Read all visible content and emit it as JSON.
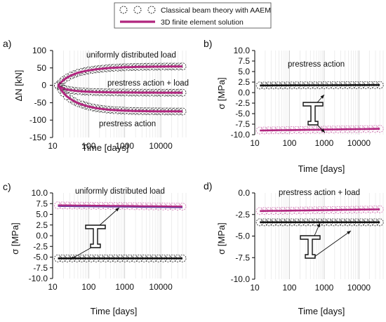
{
  "legend": {
    "items": [
      {
        "label": "Classical beam theory with AAEM",
        "marker": "dashed-circle"
      },
      {
        "label": "3D finite element solution",
        "marker": "line",
        "color": "#b0257e"
      }
    ]
  },
  "colors": {
    "fem": "#b0257e",
    "fem_light": "#d17ab4",
    "aaem": "#111111",
    "axis": "#000000",
    "grid": "#cccccc",
    "purple_line": "#6b3fa0"
  },
  "chart_data": [
    {
      "id": "a",
      "panel_label": "a)",
      "type": "line",
      "xscale": "log",
      "xlim": [
        10,
        50000
      ],
      "xticks": [
        10,
        100,
        1000,
        10000
      ],
      "xtick_labels": [
        "10",
        "100",
        "1000",
        "10000"
      ],
      "ylim": [
        -150,
        100
      ],
      "yticks": [
        100,
        50,
        0,
        -50,
        -100,
        -150
      ],
      "ytick_labels": [
        "100",
        "50",
        "0",
        "-50",
        "-100",
        "-150"
      ],
      "xlabel": "Time [days]",
      "ylabel": "ΔN [kN]",
      "annotations": [
        "uniformly distributed load",
        "prestress action + load",
        "prestress action"
      ],
      "series": [
        {
          "x": [
            14,
            17,
            20,
            25,
            32,
            40,
            50,
            65,
            80,
            100,
            130,
            160,
            200,
            250,
            320,
            400,
            500,
            650,
            800,
            1000,
            1300,
            1600,
            2000,
            2500,
            3200,
            4000,
            5000,
            6500,
            8000,
            10000,
            13000,
            16000,
            20000,
            25000,
            32000,
            40000
          ],
          "y": [
            0,
            8,
            15,
            22,
            28,
            32,
            36,
            39,
            41,
            43,
            44.5,
            46,
            47,
            48,
            49,
            50,
            50.5,
            51,
            51.5,
            52,
            52.3,
            52.5,
            52.8,
            53,
            53.2,
            53.4,
            53.5,
            53.6,
            53.7,
            53.8,
            53.9,
            54,
            54,
            54.1,
            54.1,
            54.2
          ]
        },
        {
          "x": [
            14,
            17,
            20,
            25,
            32,
            40,
            50,
            65,
            80,
            100,
            130,
            160,
            200,
            250,
            320,
            400,
            500,
            650,
            800,
            1000,
            1300,
            1600,
            2000,
            2500,
            3200,
            4000,
            5000,
            6500,
            8000,
            10000,
            13000,
            16000,
            20000,
            25000,
            32000,
            40000
          ],
          "y": [
            0,
            -5,
            -9,
            -12,
            -14,
            -15.5,
            -16.5,
            -17.3,
            -18,
            -18.5,
            -19,
            -19.3,
            -19.6,
            -19.8,
            -20,
            -20.2,
            -20.3,
            -20.4,
            -20.5,
            -20.6,
            -20.7,
            -20.8,
            -20.8,
            -20.9,
            -20.9,
            -21,
            -21,
            -21,
            -21.1,
            -21.1,
            -21.1,
            -21.2,
            -21.2,
            -21.2,
            -21.2,
            -21.3
          ]
        },
        {
          "x": [
            14,
            17,
            20,
            25,
            32,
            40,
            50,
            65,
            80,
            100,
            130,
            160,
            200,
            250,
            320,
            400,
            500,
            650,
            800,
            1000,
            1300,
            1600,
            2000,
            2500,
            3200,
            4000,
            5000,
            6500,
            8000,
            10000,
            13000,
            16000,
            20000,
            25000,
            32000,
            40000
          ],
          "y": [
            0,
            -12,
            -22,
            -32,
            -40,
            -46,
            -51,
            -55,
            -58,
            -61,
            -63.5,
            -65.5,
            -67,
            -68.3,
            -69.5,
            -70.5,
            -71.2,
            -71.8,
            -72.3,
            -72.8,
            -73.2,
            -73.5,
            -73.8,
            -74,
            -74.2,
            -74.4,
            -74.5,
            -74.6,
            -74.7,
            -74.8,
            -74.9,
            -75,
            -75,
            -75.1,
            -75.1,
            -75.2
          ]
        }
      ]
    },
    {
      "id": "b",
      "panel_label": "b)",
      "type": "line",
      "xscale": "log",
      "xlim": [
        10,
        50000
      ],
      "xticks": [
        10,
        100,
        1000,
        10000
      ],
      "xtick_labels": [
        "10",
        "100",
        "1000",
        "10000"
      ],
      "ylim": [
        -10,
        10
      ],
      "yticks": [
        10,
        7.5,
        5,
        2.5,
        0,
        -2.5,
        -5,
        -7.5,
        -10
      ],
      "ytick_labels": [
        "10.0",
        "7.5",
        "5.0",
        "2.5",
        "0.0",
        "-2.5",
        "-5.0",
        "-7.5",
        "-10.0"
      ],
      "xlabel": "Time [days]",
      "ylabel": "σ [MPa]",
      "annotations": [
        "prestress action"
      ],
      "series": [
        {
          "x": [
            14,
            40000
          ],
          "y": [
            1.7,
            1.8
          ],
          "role": "top"
        },
        {
          "x": [
            14,
            40000
          ],
          "y": [
            -9.0,
            -8.6
          ],
          "role": "bottom"
        }
      ]
    },
    {
      "id": "c",
      "panel_label": "c)",
      "type": "line",
      "xscale": "log",
      "xlim": [
        10,
        50000
      ],
      "xticks": [
        10,
        100,
        1000,
        10000
      ],
      "xtick_labels": [
        "10",
        "100",
        "1000",
        "10000"
      ],
      "ylim": [
        -10,
        10
      ],
      "yticks": [
        10,
        7.5,
        5,
        2.5,
        0,
        -2.5,
        -5,
        -7.5,
        -10
      ],
      "ytick_labels": [
        "10.0",
        "7.5",
        "5.0",
        "2.5",
        "0.0",
        "-2.5",
        "-5.0",
        "-7.5",
        "-10.0"
      ],
      "xlabel": "Time [days]",
      "ylabel": "σ [MPa]",
      "annotations": [
        "uniformly distributed load"
      ],
      "series": [
        {
          "x": [
            14,
            40000
          ],
          "y": [
            7.1,
            6.8
          ],
          "role": "top"
        },
        {
          "x": [
            14,
            40000
          ],
          "y": [
            -5.3,
            -5.3
          ],
          "role": "bottom"
        }
      ]
    },
    {
      "id": "d",
      "panel_label": "d)",
      "type": "line",
      "xscale": "log",
      "xlim": [
        10,
        50000
      ],
      "xticks": [
        10,
        100,
        1000,
        10000
      ],
      "xtick_labels": [
        "10",
        "100",
        "1000",
        "10000"
      ],
      "ylim": [
        -10,
        0
      ],
      "yticks": [
        0,
        -2.5,
        -5,
        -7.5,
        -10
      ],
      "ytick_labels": [
        "0.0",
        "-2.5",
        "-5.0",
        "-7.5",
        "-10.0"
      ],
      "xlabel": "Time [days]",
      "ylabel": "σ [MPa]",
      "annotations": [
        "prestress action + load"
      ],
      "series": [
        {
          "x": [
            14,
            40000
          ],
          "y": [
            -2.1,
            -1.9
          ],
          "role": "top"
        },
        {
          "x": [
            14,
            40000
          ],
          "y": [
            -3.4,
            -3.4
          ],
          "role": "bottom"
        }
      ]
    }
  ]
}
